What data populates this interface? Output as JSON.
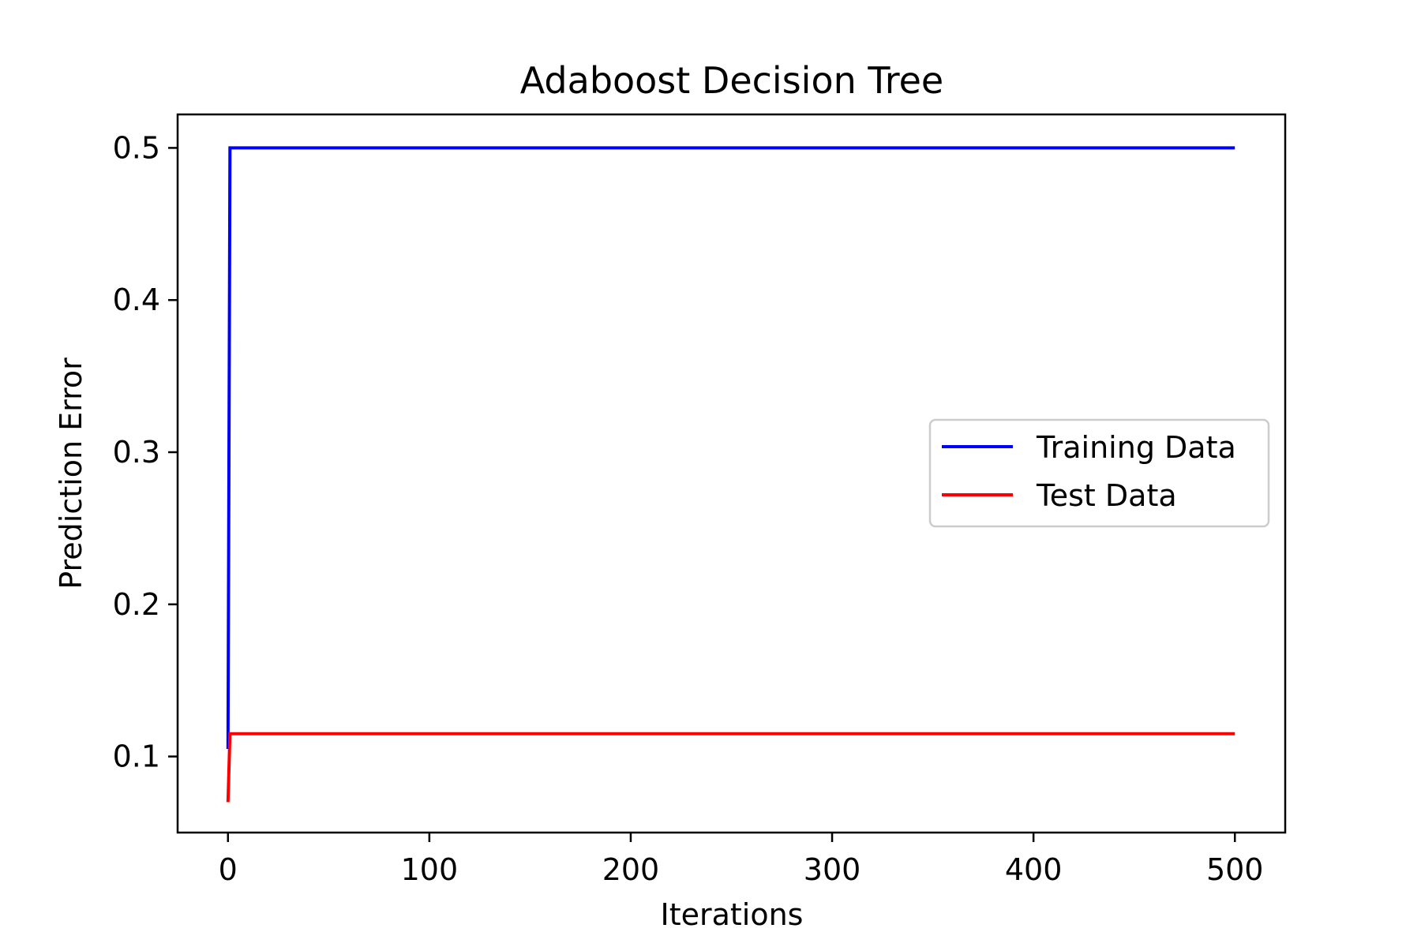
{
  "chart_data": {
    "type": "line",
    "title": "Adaboost Decision Tree",
    "xlabel": "Iterations",
    "ylabel": "Prediction Error",
    "xlim": [
      -25,
      525
    ],
    "ylim": [
      0.05,
      0.522
    ],
    "xticks": [
      0,
      100,
      200,
      300,
      400,
      500
    ],
    "xtick_labels": [
      "0",
      "100",
      "200",
      "300",
      "400",
      "500"
    ],
    "yticks": [
      0.1,
      0.2,
      0.3,
      0.4,
      0.5
    ],
    "ytick_labels": [
      "0.1",
      "0.2",
      "0.3",
      "0.4",
      "0.5"
    ],
    "grid": false,
    "legend_position": "center-right",
    "series": [
      {
        "name": "Training Data",
        "color": "#0000ff",
        "x": [
          0,
          1,
          2,
          500
        ],
        "y": [
          0.105,
          0.5,
          0.5,
          0.5
        ]
      },
      {
        "name": "Test Data",
        "color": "#ff0000",
        "x": [
          0,
          1,
          2,
          500
        ],
        "y": [
          0.07,
          0.115,
          0.115,
          0.115
        ]
      }
    ]
  }
}
